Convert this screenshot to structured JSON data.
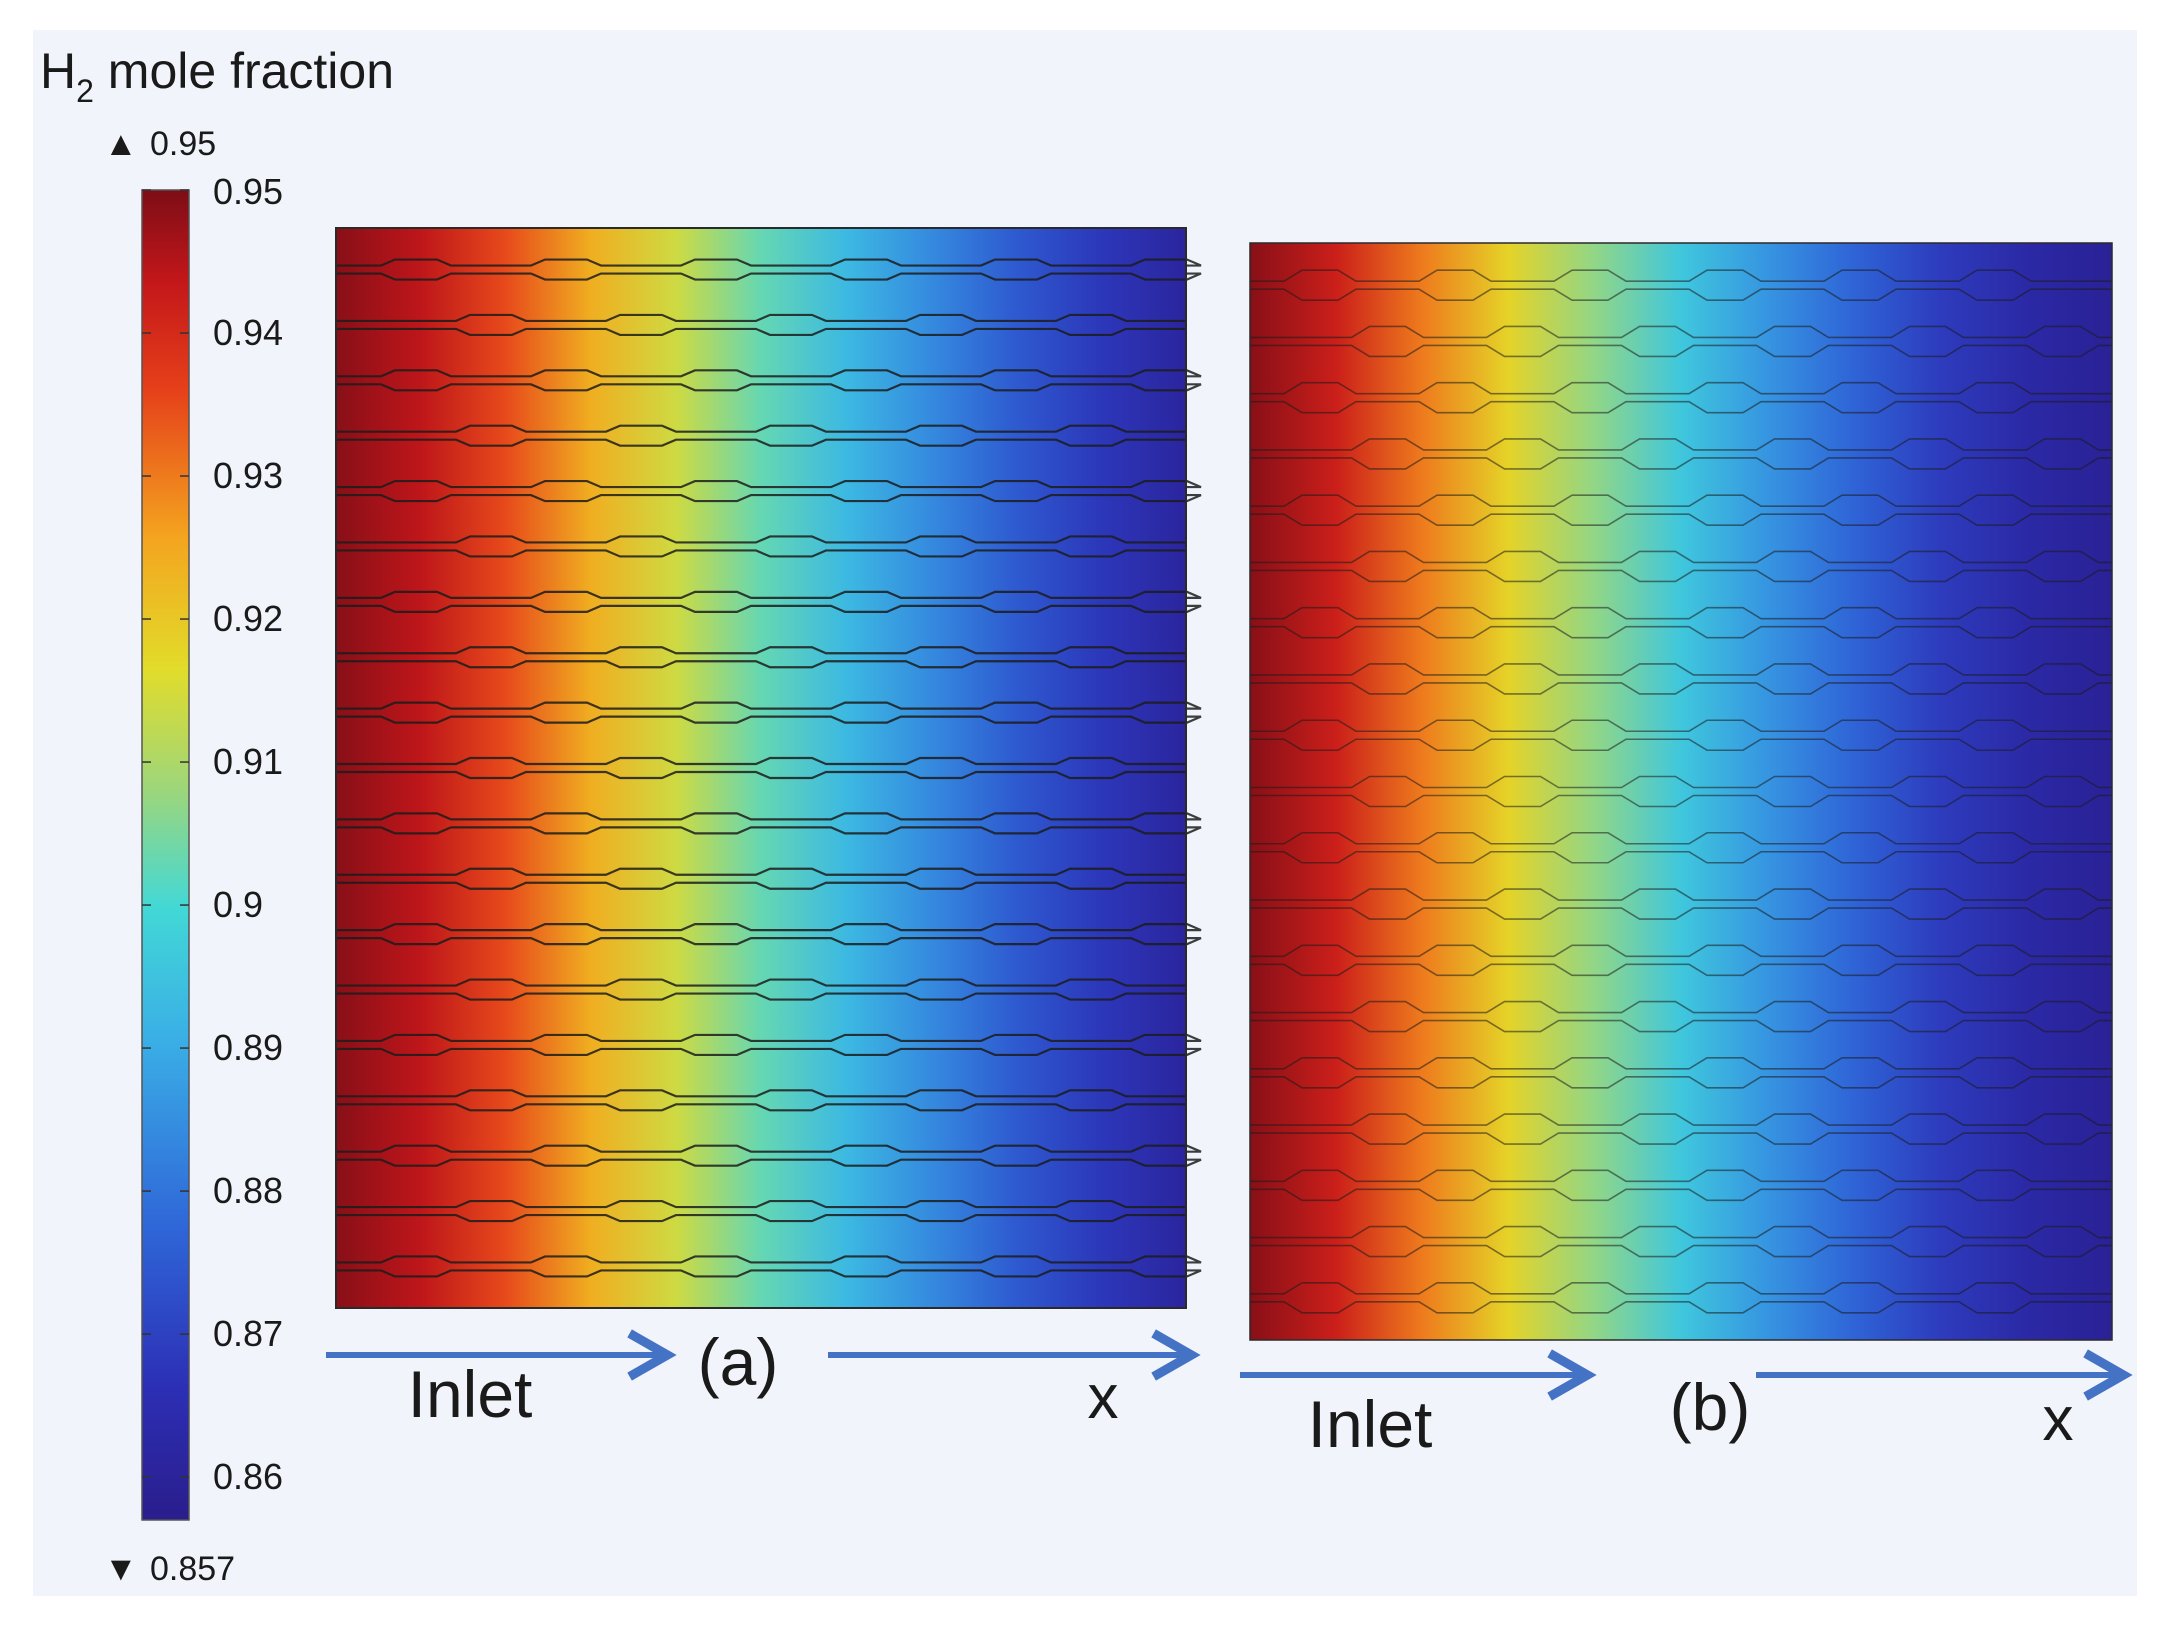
{
  "chart_data": [
    {
      "type": "heatmap",
      "panel_label": "(a)",
      "inlet_label": "Inlet",
      "axis_label": "x",
      "flow_direction": "left-to-right",
      "channel_style": "straight channels with hexagonal widenings",
      "channel_rows": 19,
      "profile": {
        "x": [
          0.0,
          0.1,
          0.2,
          0.3,
          0.4,
          0.5,
          0.6,
          0.7,
          0.8,
          0.9,
          1.0
        ],
        "h2_mole_fraction": [
          0.949,
          0.944,
          0.935,
          0.924,
          0.914,
          0.903,
          0.893,
          0.884,
          0.875,
          0.868,
          0.861
        ]
      }
    },
    {
      "type": "heatmap",
      "panel_label": "(b)",
      "inlet_label": "Inlet",
      "axis_label": "x",
      "flow_direction": "left-to-right",
      "channel_style": "straight channels with hexagonal widenings",
      "channel_rows": 19,
      "profile": {
        "x": [
          0.0,
          0.1,
          0.2,
          0.3,
          0.4,
          0.5,
          0.6,
          0.7,
          0.8,
          0.9,
          1.0
        ],
        "h2_mole_fraction": [
          0.949,
          0.942,
          0.93,
          0.918,
          0.907,
          0.896,
          0.886,
          0.877,
          0.869,
          0.863,
          0.859
        ]
      }
    }
  ],
  "colorbar": {
    "title_main": "H",
    "title_sub": "2",
    "title_rest": " mole fraction",
    "max_marker": "0.95",
    "min_marker": "0.857",
    "max_symbol": "▲",
    "min_symbol": "▼",
    "range": [
      0.857,
      0.95
    ],
    "ticks": [
      "0.95",
      "0.94",
      "0.93",
      "0.92",
      "0.91",
      "0.9",
      "0.89",
      "0.88",
      "0.87",
      "0.86"
    ],
    "tick_values": [
      0.95,
      0.94,
      0.93,
      0.92,
      0.91,
      0.9,
      0.89,
      0.88,
      0.87,
      0.86
    ],
    "colormap": "jet"
  },
  "colors": {
    "panel_background": "#f1f4fa",
    "arrow": "#4472c4",
    "channel_line": "#1c1c1c"
  }
}
